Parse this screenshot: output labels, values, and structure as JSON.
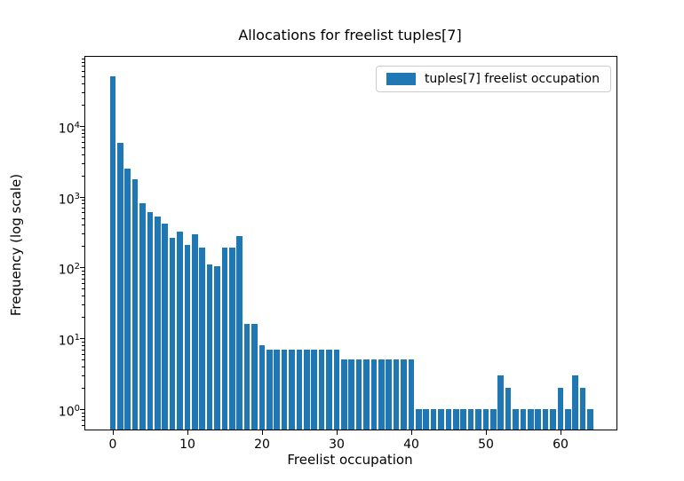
{
  "chart_data": {
    "type": "bar",
    "title": "Allocations for freelist tuples[7]",
    "xlabel": "Freelist occupation",
    "ylabel": "Frequency (log scale)",
    "legend_label": "tuples[7] freelist occupation",
    "legend_position": "upper right",
    "yscale": "log",
    "grid": false,
    "bar_color": "#1f77b4",
    "x": [
      0,
      1,
      2,
      3,
      4,
      5,
      6,
      7,
      8,
      9,
      10,
      11,
      12,
      13,
      14,
      15,
      16,
      17,
      18,
      19,
      20,
      21,
      22,
      23,
      24,
      25,
      26,
      27,
      28,
      29,
      30,
      31,
      32,
      33,
      34,
      35,
      36,
      37,
      38,
      39,
      40,
      41,
      42,
      43,
      44,
      45,
      46,
      47,
      48,
      49,
      50,
      51,
      52,
      53,
      54,
      55,
      56,
      57,
      58,
      59,
      60,
      61,
      62,
      63,
      64
    ],
    "values": [
      50000,
      5800,
      2500,
      1750,
      800,
      600,
      520,
      420,
      260,
      320,
      210,
      295,
      190,
      112,
      105,
      190,
      190,
      280,
      16,
      16,
      8,
      7,
      7,
      7,
      7,
      7,
      7,
      7,
      7,
      7,
      7,
      5,
      5,
      5,
      5,
      5,
      5,
      5,
      5,
      5,
      5,
      1,
      1,
      1,
      1,
      1,
      1,
      1,
      1,
      1,
      1,
      1,
      3,
      2,
      1,
      1,
      1,
      1,
      1,
      1,
      2,
      1,
      3,
      2,
      1
    ],
    "xticks": [
      0,
      10,
      20,
      30,
      40,
      50,
      60
    ],
    "yticks": [
      1,
      10,
      100,
      1000,
      10000
    ],
    "xlim": [
      -3.69,
      67.5
    ],
    "ylim": [
      0.515,
      94400
    ],
    "bar_width_fraction": 0.8
  }
}
